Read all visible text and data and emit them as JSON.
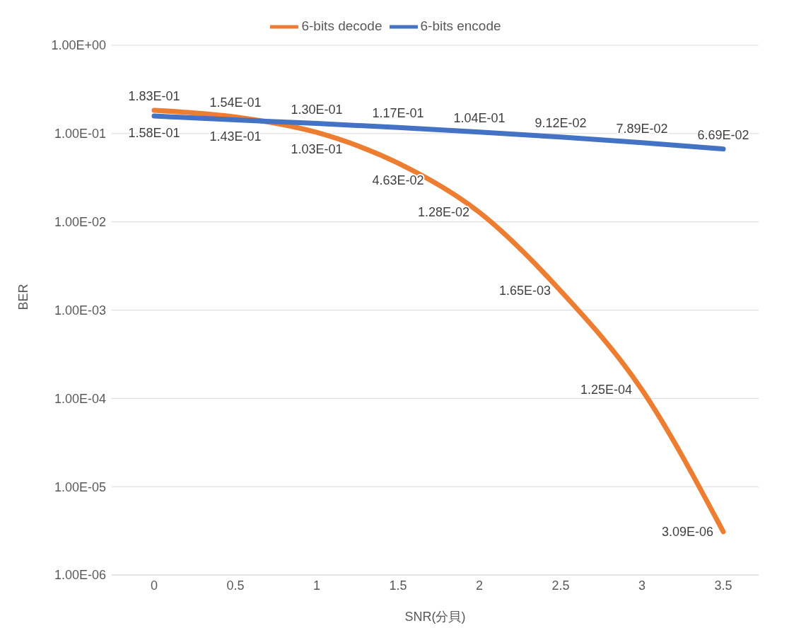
{
  "chart_data": {
    "type": "line",
    "xlabel": "SNR(分貝)",
    "ylabel": "BER",
    "categories": [
      "0",
      "0.5",
      "1",
      "1.5",
      "2",
      "2.5",
      "3",
      "3.5"
    ],
    "series": [
      {
        "name": "6-bits decode",
        "color": "#ed7d31",
        "values": [
          0.183,
          0.154,
          0.103,
          0.0463,
          0.0128,
          0.00165,
          0.000125,
          3.09e-06
        ],
        "value_labels": [
          "1.83E-01",
          "1.54E-01",
          "1.03E-01",
          "4.63E-02",
          "1.28E-02",
          "1.65E-03",
          "1.25E-04",
          "3.09E-06"
        ]
      },
      {
        "name": "6-bits encode",
        "color": "#4472c4",
        "values": [
          0.158,
          0.143,
          0.13,
          0.117,
          0.104,
          0.0912,
          0.0789,
          0.0669
        ],
        "value_labels": [
          "1.58E-01",
          "1.43E-01",
          "1.30E-01",
          "1.17E-01",
          "1.04E-01",
          "9.12E-02",
          "7.89E-02",
          "6.69E-02"
        ]
      }
    ],
    "log": "y",
    "ylim": [
      1e-06,
      1
    ],
    "yticks": [
      {
        "value": 1e-06,
        "label": "1.00E-06"
      },
      {
        "value": 1e-05,
        "label": "1.00E-05"
      },
      {
        "value": 0.0001,
        "label": "1.00E-04"
      },
      {
        "value": 0.001,
        "label": "1.00E-03"
      },
      {
        "value": 0.01,
        "label": "1.00E-02"
      },
      {
        "value": 0.1,
        "label": "1.00E-01"
      },
      {
        "value": 1,
        "label": "1.00E+00"
      }
    ],
    "grid": "y",
    "legend": "top",
    "marker": "none",
    "line_style": "solid"
  }
}
